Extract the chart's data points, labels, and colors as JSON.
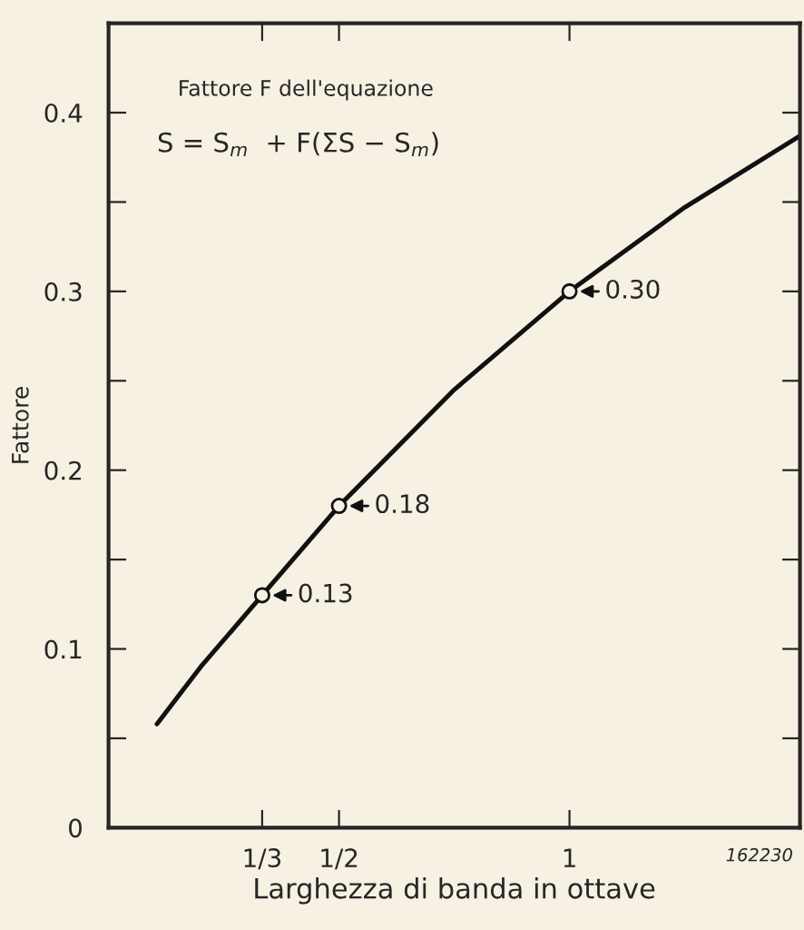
{
  "chart_data": {
    "type": "line",
    "xlabel": "Larghezza di banda in ottave",
    "ylabel": "Fattore",
    "annotations": [
      "Fattore F dell'equazione",
      "S = S$_{m}$  + F(ΣS − S$_{m}$)",
      "162230"
    ],
    "xlim": [
      0,
      1.5
    ],
    "ylim": [
      0,
      0.45
    ],
    "xticks": [
      {
        "value": 0.3333,
        "label": "1/3"
      },
      {
        "value": 0.5,
        "label": "1/2"
      },
      1
    ],
    "yticks": [
      0,
      {
        "value": 0.05,
        "label": null
      },
      0.1,
      {
        "value": 0.15,
        "label": null
      },
      0.2,
      {
        "value": 0.25,
        "label": null
      },
      0.3,
      {
        "value": 0.35,
        "label": null
      },
      0.4
    ],
    "grid": false,
    "legend": false,
    "line_style": "solid",
    "series": [
      {
        "color": "#111111",
        "marker": "none",
        "x": [
          0.105,
          0.2,
          0.3333,
          0.5,
          0.75,
          1,
          1.25,
          1.5
        ],
        "values": [
          0.058,
          0.09,
          0.13,
          0.18,
          0.245,
          0.3,
          0.347,
          0.387
        ]
      },
      {
        "type": "scatter",
        "color": "#111111",
        "marker": "circle",
        "x": [
          0.3333,
          0.5,
          1
        ],
        "values": [
          0.13,
          0.18,
          0.3
        ],
        "value_labels": [
          "0.13",
          "0.18",
          "0.30"
        ]
      }
    ]
  }
}
